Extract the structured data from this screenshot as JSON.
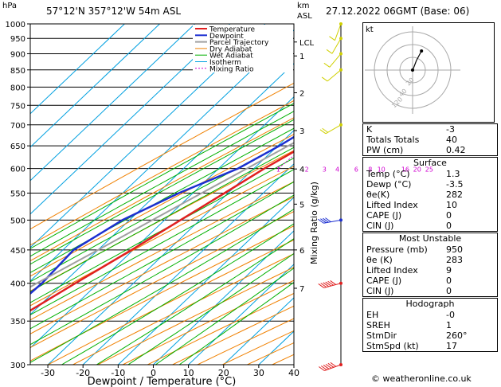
{
  "header": {
    "hpa_label": "hPa",
    "location": "57°12'N  357°12'W  54m  ASL",
    "km_label": "km",
    "asl_label": "ASL",
    "datetime": "27.12.2022  06GMT  (Base: 06)"
  },
  "hodograph": {
    "unit": "kt",
    "ring_labels": [
      "20",
      "40"
    ],
    "ring_label_extra": "120"
  },
  "indices": {
    "rows": [
      {
        "label": "K",
        "value": "-3"
      },
      {
        "label": "Totals Totals",
        "value": "40"
      },
      {
        "label": "PW (cm)",
        "value": "0.42"
      }
    ]
  },
  "surface": {
    "title": "Surface",
    "rows": [
      {
        "label": "Temp (°C)",
        "value": "1.3"
      },
      {
        "label": "Dewp (°C)",
        "value": "-3.5"
      },
      {
        "label": "θe(K)",
        "value": "282"
      },
      {
        "label": "Lifted Index",
        "value": "10"
      },
      {
        "label": "CAPE (J)",
        "value": "0"
      },
      {
        "label": "CIN (J)",
        "value": "0"
      }
    ]
  },
  "most_unstable": {
    "title": "Most Unstable",
    "rows": [
      {
        "label": "Pressure (mb)",
        "value": "950"
      },
      {
        "label": "θe (K)",
        "value": "283"
      },
      {
        "label": "Lifted Index",
        "value": "9"
      },
      {
        "label": "CAPE (J)",
        "value": "0"
      },
      {
        "label": "CIN (J)",
        "value": "0"
      }
    ]
  },
  "hodograph_table": {
    "title": "Hodograph",
    "rows": [
      {
        "label": "EH",
        "value": "-0"
      },
      {
        "label": "SREH",
        "value": "1"
      },
      {
        "label": "StmDir",
        "value": "260°"
      },
      {
        "label": "StmSpd (kt)",
        "value": "17"
      }
    ]
  },
  "credit": "© weatheronline.co.uk",
  "colors": {
    "temperature": "#e02020",
    "dewpoint": "#1c2fd1",
    "parcel": "#a0a0a0",
    "dry_adiabat": "#f08000",
    "wet_adiabat": "#00b000",
    "isotherm": "#00a0e0",
    "mixing_ratio": "#d000d0",
    "wind": "#d0d000"
  },
  "chart_data": {
    "type": "line",
    "xlabel": "Dewpoint / Temperature (°C)",
    "ylabel": "Mixing Ratio (g/kg)",
    "xlim": [
      -35,
      40
    ],
    "ylim": [
      1000,
      300
    ],
    "x_ticks": [
      -30,
      -20,
      -10,
      0,
      10,
      20,
      30,
      40
    ],
    "pressure_ticks": [
      300,
      350,
      400,
      450,
      500,
      550,
      600,
      650,
      700,
      750,
      800,
      850,
      900,
      950,
      1000
    ],
    "km_ticks": [
      {
        "label": "7",
        "p": 393
      },
      {
        "label": "6",
        "p": 450
      },
      {
        "label": "5",
        "p": 529
      },
      {
        "label": "4",
        "p": 599
      },
      {
        "label": "3",
        "p": 686
      },
      {
        "label": "2",
        "p": 784
      },
      {
        "label": "1",
        "p": 893
      },
      {
        "label": "LCL",
        "p": 938
      }
    ],
    "mixing_ratio_labels": [
      "1",
      "2",
      "3",
      "4",
      "6",
      "8",
      "10",
      "16",
      "20",
      "25"
    ],
    "mixing_ratio_values": [
      1,
      2,
      3,
      4,
      6,
      8,
      10,
      16,
      20,
      25
    ],
    "legend": [
      "Temperature",
      "Dewpoint",
      "Parcel Trajectory",
      "Dry Adiabat",
      "Wet Adiabat",
      "Isotherm",
      "Mixing Ratio"
    ],
    "series": [
      {
        "name": "Temperature",
        "points": [
          [
            1000,
            1.3
          ],
          [
            970,
            0.5
          ],
          [
            950,
            -0.5
          ],
          [
            925,
            -1.8
          ],
          [
            900,
            -3.2
          ],
          [
            850,
            -6
          ],
          [
            800,
            -9.5
          ],
          [
            750,
            -13.5
          ],
          [
            700,
            -18
          ],
          [
            650,
            -22.5
          ],
          [
            600,
            -27
          ],
          [
            550,
            -31
          ],
          [
            500,
            -35.5
          ],
          [
            450,
            -40.5
          ],
          [
            400,
            -46.5
          ],
          [
            350,
            -53
          ],
          [
            300,
            -59
          ]
        ]
      },
      {
        "name": "Dewpoint",
        "points": [
          [
            1000,
            -3.5
          ],
          [
            950,
            -5.5
          ],
          [
            900,
            -8.5
          ],
          [
            850,
            -14
          ],
          [
            800,
            -19
          ],
          [
            750,
            -22
          ],
          [
            700,
            -26
          ],
          [
            650,
            -29.5
          ],
          [
            600,
            -34.5
          ],
          [
            550,
            -44
          ],
          [
            500,
            -52
          ],
          [
            450,
            -57
          ],
          [
            400,
            -56
          ],
          [
            350,
            -57
          ],
          [
            300,
            -64
          ]
        ]
      },
      {
        "name": "Parcel Trajectory",
        "points": [
          [
            1000,
            1.3
          ],
          [
            938,
            -3.5
          ],
          [
            900,
            -6
          ],
          [
            850,
            -9.5
          ],
          [
            800,
            -13.5
          ],
          [
            750,
            -17.5
          ],
          [
            700,
            -22
          ],
          [
            650,
            -27
          ],
          [
            600,
            -32
          ],
          [
            550,
            -37.5
          ],
          [
            500,
            -43.5
          ],
          [
            450,
            -50
          ],
          [
            400,
            -57.5
          ],
          [
            350,
            -65
          ],
          [
            300,
            -74
          ]
        ]
      }
    ],
    "wind_barbs": [
      {
        "p": 300,
        "dir": 250,
        "spd_kt": 65
      },
      {
        "p": 400,
        "dir": 255,
        "spd_kt": 55
      },
      {
        "p": 500,
        "dir": 260,
        "spd_kt": 40
      },
      {
        "p": 700,
        "dir": 240,
        "spd_kt": 15
      },
      {
        "p": 850,
        "dir": 230,
        "spd_kt": 10
      },
      {
        "p": 900,
        "dir": 220,
        "spd_kt": 8
      },
      {
        "p": 950,
        "dir": 210,
        "spd_kt": 7
      },
      {
        "p": 1000,
        "dir": 200,
        "spd_kt": 5
      }
    ],
    "hodograph_points": [
      [
        0,
        0
      ],
      [
        2,
        3
      ],
      [
        6,
        10
      ],
      [
        14,
        20
      ]
    ]
  }
}
